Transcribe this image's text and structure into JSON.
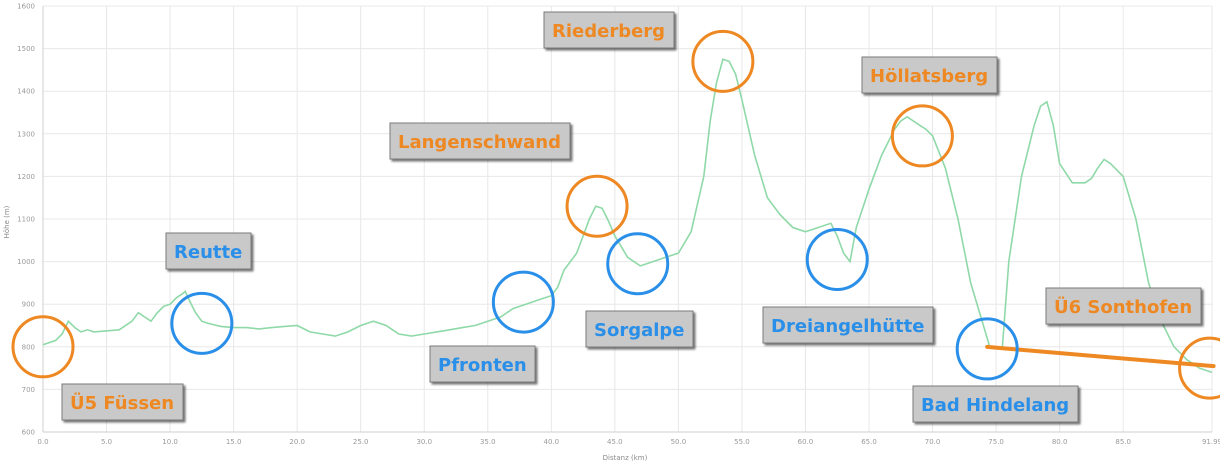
{
  "chart_data": {
    "type": "line",
    "xlabel": "Distanz (km)",
    "ylabel": "Höhe (m)",
    "xlim": [
      0,
      91.99
    ],
    "ylim": [
      600,
      1600
    ],
    "x_ticks": [
      "0.0",
      "5.0",
      "10.0",
      "15.0",
      "20.0",
      "25.0",
      "30.0",
      "35.0",
      "40.0",
      "45.0",
      "50.0",
      "55.0",
      "60.0",
      "65.0",
      "70.0",
      "75.0",
      "80.0",
      "85.0",
      "91.99"
    ],
    "y_ticks": [
      "600",
      "700",
      "800",
      "900",
      "1000",
      "1100",
      "1200",
      "1300",
      "1400",
      "1500",
      "1600"
    ],
    "grid": true,
    "line_color": "#8fd9a8",
    "series": [
      {
        "x": [
          0,
          1,
          1.5,
          2,
          2.5,
          3,
          3.5,
          4,
          6,
          7,
          7.5,
          8,
          8.5,
          9,
          9.5,
          10,
          10.5,
          11,
          11.2,
          11.5,
          12,
          12.5,
          13,
          14,
          15,
          16,
          17,
          18,
          19,
          20,
          21,
          22,
          23,
          24,
          25,
          26,
          27,
          27.5,
          28,
          29,
          30,
          31,
          32,
          33,
          34,
          35,
          36,
          37,
          38,
          39,
          40,
          40.5,
          41,
          42,
          42.5,
          43,
          43.5,
          44,
          44.5,
          45,
          46,
          47,
          48,
          49,
          50,
          51,
          52,
          52.5,
          53,
          53.5,
          54,
          54.5,
          55,
          56,
          57,
          58,
          59,
          60,
          61,
          62,
          62.5,
          63,
          63.5,
          64,
          65,
          66,
          67,
          67.5,
          68,
          69,
          69.5,
          70,
          71,
          72,
          73,
          74,
          74.5,
          75,
          75.5,
          76,
          77,
          78,
          78.5,
          79,
          79.5,
          80,
          81,
          82,
          82.5,
          83,
          83.5,
          84,
          85,
          86,
          87,
          88,
          89,
          90,
          91,
          91.99
        ],
        "y": [
          805,
          815,
          830,
          860,
          845,
          835,
          840,
          835,
          840,
          860,
          880,
          870,
          860,
          880,
          895,
          900,
          915,
          925,
          930,
          910,
          880,
          860,
          855,
          848,
          845,
          845,
          842,
          845,
          848,
          850,
          835,
          830,
          825,
          835,
          850,
          860,
          850,
          840,
          830,
          825,
          830,
          835,
          840,
          845,
          850,
          860,
          870,
          890,
          900,
          910,
          920,
          940,
          980,
          1020,
          1060,
          1100,
          1130,
          1125,
          1095,
          1060,
          1010,
          990,
          1000,
          1010,
          1020,
          1070,
          1200,
          1330,
          1420,
          1475,
          1470,
          1440,
          1380,
          1250,
          1150,
          1110,
          1080,
          1070,
          1080,
          1090,
          1060,
          1020,
          1000,
          1080,
          1170,
          1250,
          1310,
          1330,
          1340,
          1320,
          1310,
          1295,
          1220,
          1100,
          950,
          850,
          800,
          795,
          800,
          1000,
          1200,
          1320,
          1365,
          1375,
          1320,
          1230,
          1185,
          1185,
          1195,
          1220,
          1240,
          1230,
          1200,
          1100,
          950,
          860,
          800,
          770,
          750,
          740
        ]
      }
    ],
    "annotations": [
      {
        "text": "Ü5 Füssen",
        "x": 0,
        "y": 800,
        "color": "orange"
      },
      {
        "text": "Reutte",
        "x": 12.5,
        "y": 855,
        "color": "blue"
      },
      {
        "text": "Pfronten",
        "x": 37.8,
        "y": 905,
        "color": "blue"
      },
      {
        "text": "Langenschwand",
        "x": 43.6,
        "y": 1130,
        "color": "orange"
      },
      {
        "text": "Sorgalpe",
        "x": 46.8,
        "y": 995,
        "color": "blue"
      },
      {
        "text": "Riederberg",
        "x": 53.5,
        "y": 1470,
        "color": "orange"
      },
      {
        "text": "Dreiangelhütte",
        "x": 62.5,
        "y": 1005,
        "color": "blue"
      },
      {
        "text": "Höllatsberg",
        "x": 69.2,
        "y": 1295,
        "color": "orange"
      },
      {
        "text": "Bad Hindelang",
        "x": 74.3,
        "y": 795,
        "color": "blue"
      },
      {
        "text": "Ü6 Sonthofen",
        "x": 91.8,
        "y": 750,
        "color": "orange"
      }
    ],
    "colors": {
      "orange": "#ee8822",
      "blue": "#2a8fe8",
      "label_bg": "#c9c9c9"
    }
  }
}
